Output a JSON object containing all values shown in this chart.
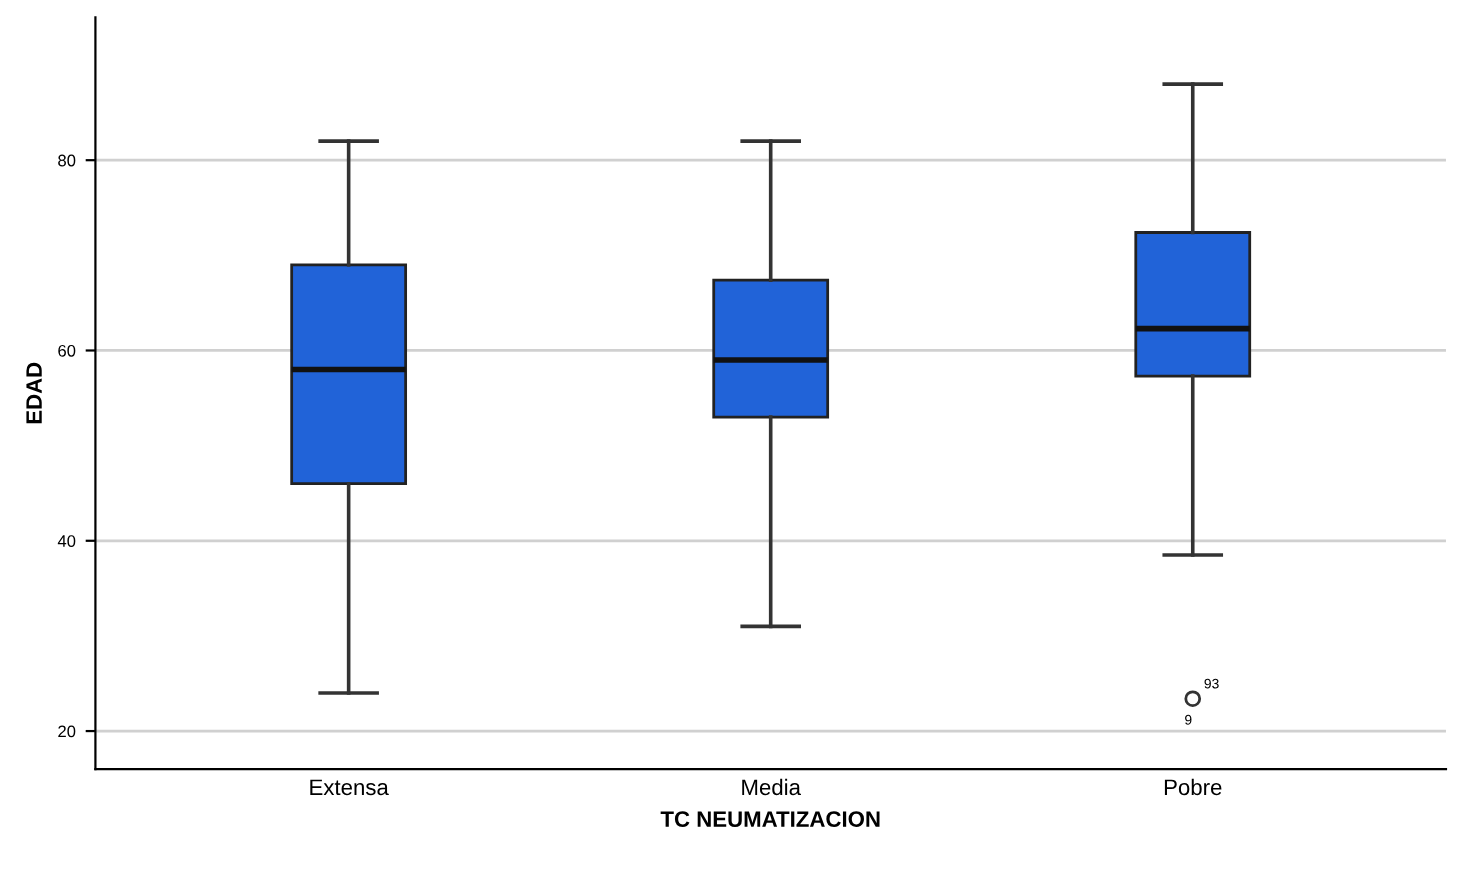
{
  "chart_data": {
    "type": "box",
    "xlabel": "TC NEUMATIZACION",
    "ylabel": "EDAD",
    "categories": [
      "Extensa",
      "Media",
      "Pobre"
    ],
    "color": "#2163d8",
    "boxes": [
      {
        "low": 24,
        "q1": 46,
        "median": 58,
        "q3": 69,
        "high": 82
      },
      {
        "low": 31,
        "q1": 53,
        "median": 59,
        "q3": 67.4,
        "high": 82
      },
      {
        "low": 38.5,
        "q1": 57.3,
        "median": 62.3,
        "q3": 72.4,
        "high": 88,
        "outliers": [
          23.4
        ]
      }
    ],
    "annotations": [
      "93",
      "9"
    ],
    "ylim": [
      16,
      95
    ],
    "yticks": [
      20,
      40,
      60,
      80
    ],
    "grid": "y"
  }
}
